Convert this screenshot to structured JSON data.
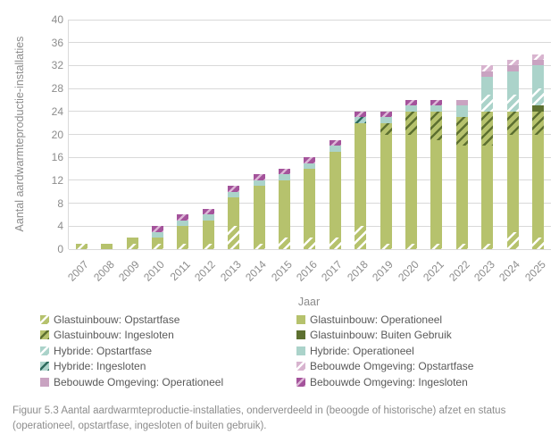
{
  "chart_data": {
    "type": "bar",
    "stacked": true,
    "title": "",
    "xlabel": "Jaar",
    "ylabel": "Aantal aardwarmteproductie-installaties",
    "ylim": [
      0,
      40
    ],
    "ytick_step": 4,
    "grid": true,
    "legend_position": "bottom",
    "categories": [
      "2007",
      "2008",
      "2009",
      "2010",
      "2011",
      "2012",
      "2013",
      "2014",
      "2015",
      "2016",
      "2017",
      "2018",
      "2019",
      "2020",
      "2021",
      "2022",
      "2023",
      "2024",
      "2025"
    ],
    "series": [
      {
        "key": "glas-opstartfase",
        "name": "Glastuinbouw: Opstartfase",
        "pattern": "hatch",
        "color": "#b6c26d",
        "stripe": "#ffffff",
        "values": [
          1,
          0,
          1,
          1,
          1,
          1,
          4,
          1,
          2,
          2,
          2,
          4,
          1,
          1,
          1,
          1,
          1,
          3,
          2
        ]
      },
      {
        "key": "glas-operationeel",
        "name": "Glastuinbouw: Operationeel",
        "pattern": "solid",
        "color": "#b6c26d",
        "stripe": "",
        "values": [
          0,
          1,
          1,
          1,
          3,
          4,
          5,
          10,
          10,
          12,
          15,
          18,
          19,
          19,
          18,
          17,
          17,
          17,
          18
        ]
      },
      {
        "key": "glas-ingesloten",
        "name": "Glastuinbouw: Ingesloten",
        "pattern": "hatch",
        "color": "#b6c26d",
        "stripe": "#5d7030",
        "values": [
          0,
          0,
          0,
          0,
          0,
          0,
          0,
          0,
          0,
          0,
          0,
          0,
          2,
          4,
          5,
          5,
          6,
          4,
          4
        ]
      },
      {
        "key": "glas-buiten-gebruik",
        "name": "Glastuinbouw: Buiten Gebruik",
        "pattern": "solid",
        "color": "#5d7030",
        "stripe": "",
        "values": [
          0,
          0,
          0,
          0,
          0,
          0,
          0,
          0,
          0,
          0,
          0,
          0,
          0,
          0,
          0,
          0,
          0,
          0,
          1
        ]
      },
      {
        "key": "hybride-opstartfase",
        "name": "Hybride: Opstartfase",
        "pattern": "hatch",
        "color": "#abd3ca",
        "stripe": "#ffffff",
        "values": [
          0,
          0,
          0,
          0,
          0,
          0,
          0,
          0,
          0,
          0,
          0,
          0,
          0,
          0,
          0,
          0,
          3,
          3,
          3
        ]
      },
      {
        "key": "hybride-operationeel",
        "name": "Hybride: Operationeel",
        "pattern": "solid",
        "color": "#abd3ca",
        "stripe": "",
        "values": [
          0,
          0,
          0,
          1,
          1,
          1,
          1,
          1,
          1,
          1,
          1,
          0,
          1,
          1,
          1,
          2,
          3,
          4,
          4
        ]
      },
      {
        "key": "hybride-ingesloten",
        "name": "Hybride: Ingesloten",
        "pattern": "hatch",
        "color": "#abd3ca",
        "stripe": "#2e6b5e",
        "values": [
          0,
          0,
          0,
          0,
          0,
          0,
          0,
          0,
          0,
          0,
          0,
          1,
          0,
          0,
          0,
          0,
          0,
          0,
          0
        ]
      },
      {
        "key": "bebouwd-operationeel",
        "name": "Bebouwde Omgeving: Operationeel",
        "pattern": "solid",
        "color": "#c9a3c1",
        "stripe": "",
        "values": [
          0,
          0,
          0,
          0,
          0,
          0,
          0,
          0,
          0,
          0,
          0,
          0,
          0,
          0,
          0,
          1,
          1,
          1,
          1
        ]
      },
      {
        "key": "bebouwd-opstartfase",
        "name": "Bebouwde Omgeving: Opstartfase",
        "pattern": "hatch",
        "color": "#d8b4cf",
        "stripe": "#ffffff",
        "values": [
          0,
          0,
          0,
          0,
          0,
          0,
          0,
          0,
          0,
          0,
          0,
          0,
          0,
          0,
          0,
          0,
          1,
          1,
          1
        ]
      },
      {
        "key": "bebouwd-ingesloten",
        "name": "Bebouwde Omgeving: Ingesloten",
        "pattern": "hatch",
        "color": "#a4539b",
        "stripe": "#dcb5d6",
        "values": [
          0,
          0,
          0,
          1,
          1,
          1,
          1,
          1,
          1,
          1,
          1,
          1,
          1,
          1,
          1,
          0,
          0,
          0,
          0
        ]
      }
    ]
  },
  "legend": {
    "order": [
      "glas-opstartfase",
      "glas-operationeel",
      "glas-ingesloten",
      "glas-buiten-gebruik",
      "hybride-opstartfase",
      "hybride-operationeel",
      "hybride-ingesloten",
      "bebouwd-opstartfase",
      "bebouwd-operationeel",
      "bebouwd-ingesloten"
    ]
  },
  "caption": {
    "text": "Figuur 5.3 Aantal aardwarmteproductie-installaties, onderverdeeld in (beoogde of historische) afzet en status (operationeel, opstartfase, ingesloten of buiten gebruik)."
  },
  "colors": {
    "gridline": "#d9d9d9",
    "axis_text": "#8c8c8c",
    "legend_text": "#595959"
  }
}
